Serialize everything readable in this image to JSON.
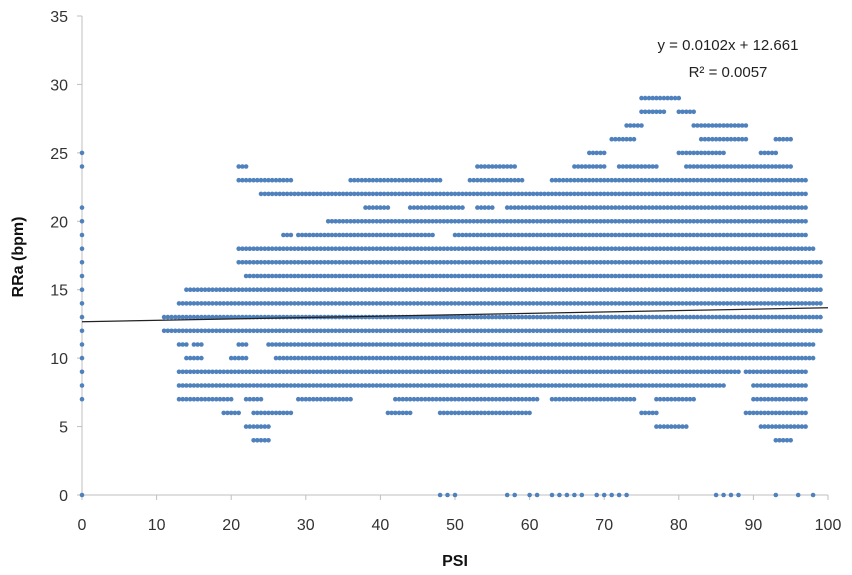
{
  "chart_data": {
    "type": "scatter",
    "title": "",
    "xlabel": "PSI",
    "ylabel": "RRa (bpm)",
    "xlim": [
      0,
      100
    ],
    "ylim": [
      0,
      35
    ],
    "xticks": [
      "0",
      "10",
      "20",
      "30",
      "40",
      "50",
      "60",
      "70",
      "80",
      "90",
      "100"
    ],
    "yticks": [
      "0",
      "5",
      "10",
      "15",
      "20",
      "25",
      "30",
      "35"
    ],
    "grid": false,
    "legend": "none",
    "marker_color": "#4F81BD",
    "trendline": {
      "type": "linear",
      "slope": 0.0102,
      "intercept": 12.661,
      "equation": "y = 0.0102x + 12.661",
      "r2": "R² = 0.0057",
      "color": "#222222"
    },
    "series": [
      {
        "bands": [
          {
            "y": 4,
            "ranges": [
              [
                23,
                25
              ],
              [
                93,
                95
              ]
            ]
          },
          {
            "y": 5,
            "ranges": [
              [
                22,
                25
              ],
              [
                77,
                81
              ],
              [
                91,
                97
              ]
            ]
          },
          {
            "y": 6,
            "ranges": [
              [
                19,
                21
              ],
              [
                23,
                28
              ],
              [
                41,
                44
              ],
              [
                48,
                60
              ],
              [
                75,
                77
              ],
              [
                89,
                97
              ]
            ]
          },
          {
            "y": 7,
            "ranges": [
              [
                13,
                20
              ],
              [
                22,
                24
              ],
              [
                29,
                36
              ],
              [
                42,
                61
              ],
              [
                63,
                74
              ],
              [
                77,
                82
              ],
              [
                90,
                97
              ]
            ]
          },
          {
            "y": 8,
            "ranges": [
              [
                13,
                86
              ],
              [
                90,
                97
              ]
            ]
          },
          {
            "y": 9,
            "ranges": [
              [
                13,
                88
              ],
              [
                89,
                97
              ]
            ]
          },
          {
            "y": 10,
            "ranges": [
              [
                14,
                16
              ],
              [
                20,
                22
              ],
              [
                26,
                98
              ]
            ]
          },
          {
            "y": 11,
            "ranges": [
              [
                13,
                14
              ],
              [
                15,
                16
              ],
              [
                21,
                22
              ],
              [
                25,
                98
              ]
            ]
          },
          {
            "y": 12,
            "ranges": [
              [
                11,
                99
              ]
            ]
          },
          {
            "y": 13,
            "ranges": [
              [
                11,
                99
              ]
            ]
          },
          {
            "y": 14,
            "ranges": [
              [
                13,
                99
              ]
            ]
          },
          {
            "y": 15,
            "ranges": [
              [
                14,
                99
              ]
            ]
          },
          {
            "y": 16,
            "ranges": [
              [
                22,
                99
              ]
            ]
          },
          {
            "y": 17,
            "ranges": [
              [
                21,
                99
              ]
            ]
          },
          {
            "y": 18,
            "ranges": [
              [
                21,
                98
              ]
            ]
          },
          {
            "y": 19,
            "ranges": [
              [
                27,
                28
              ],
              [
                29,
                47
              ],
              [
                50,
                97
              ]
            ]
          },
          {
            "y": 20,
            "ranges": [
              [
                33,
                97
              ]
            ]
          },
          {
            "y": 21,
            "ranges": [
              [
                38,
                41
              ],
              [
                44,
                51
              ],
              [
                53,
                55
              ],
              [
                57,
                97
              ]
            ]
          },
          {
            "y": 22,
            "ranges": [
              [
                24,
                97
              ]
            ]
          },
          {
            "y": 23,
            "ranges": [
              [
                21,
                28
              ],
              [
                36,
                48
              ],
              [
                52,
                59
              ],
              [
                63,
                97
              ]
            ]
          },
          {
            "y": 24,
            "ranges": [
              [
                21,
                22
              ],
              [
                53,
                58
              ],
              [
                66,
                70
              ],
              [
                72,
                77
              ],
              [
                81,
                95
              ]
            ]
          },
          {
            "y": 25,
            "ranges": [
              [
                68,
                70
              ],
              [
                80,
                86
              ],
              [
                91,
                93
              ]
            ]
          },
          {
            "y": 26,
            "ranges": [
              [
                71,
                74
              ],
              [
                83,
                89
              ],
              [
                93,
                95
              ]
            ]
          },
          {
            "y": 27,
            "ranges": [
              [
                73,
                75
              ],
              [
                82,
                89
              ]
            ]
          },
          {
            "y": 28,
            "ranges": [
              [
                75,
                78
              ],
              [
                80,
                82
              ]
            ]
          },
          {
            "y": 29,
            "ranges": [
              [
                75,
                80
              ]
            ]
          }
        ],
        "points": [
          [
            0,
            0
          ],
          [
            0,
            7
          ],
          [
            0,
            8
          ],
          [
            0,
            9
          ],
          [
            0,
            10
          ],
          [
            0,
            11
          ],
          [
            0,
            12
          ],
          [
            0,
            13
          ],
          [
            0,
            14
          ],
          [
            0,
            15
          ],
          [
            0,
            16
          ],
          [
            0,
            17
          ],
          [
            0,
            18
          ],
          [
            0,
            19
          ],
          [
            0,
            20
          ],
          [
            0,
            21
          ],
          [
            0,
            24
          ],
          [
            0,
            25
          ],
          [
            48,
            0
          ],
          [
            49,
            0
          ],
          [
            50,
            0
          ],
          [
            57,
            0
          ],
          [
            58,
            0
          ],
          [
            60,
            0
          ],
          [
            61,
            0
          ],
          [
            63,
            0
          ],
          [
            64,
            0
          ],
          [
            65,
            0
          ],
          [
            66,
            0
          ],
          [
            67,
            0
          ],
          [
            69,
            0
          ],
          [
            70,
            0
          ],
          [
            71,
            0
          ],
          [
            72,
            0
          ],
          [
            73,
            0
          ],
          [
            85,
            0
          ],
          [
            86,
            0
          ],
          [
            87,
            0
          ],
          [
            88,
            0
          ],
          [
            93,
            0
          ],
          [
            96,
            0
          ],
          [
            98,
            0
          ]
        ]
      }
    ]
  }
}
